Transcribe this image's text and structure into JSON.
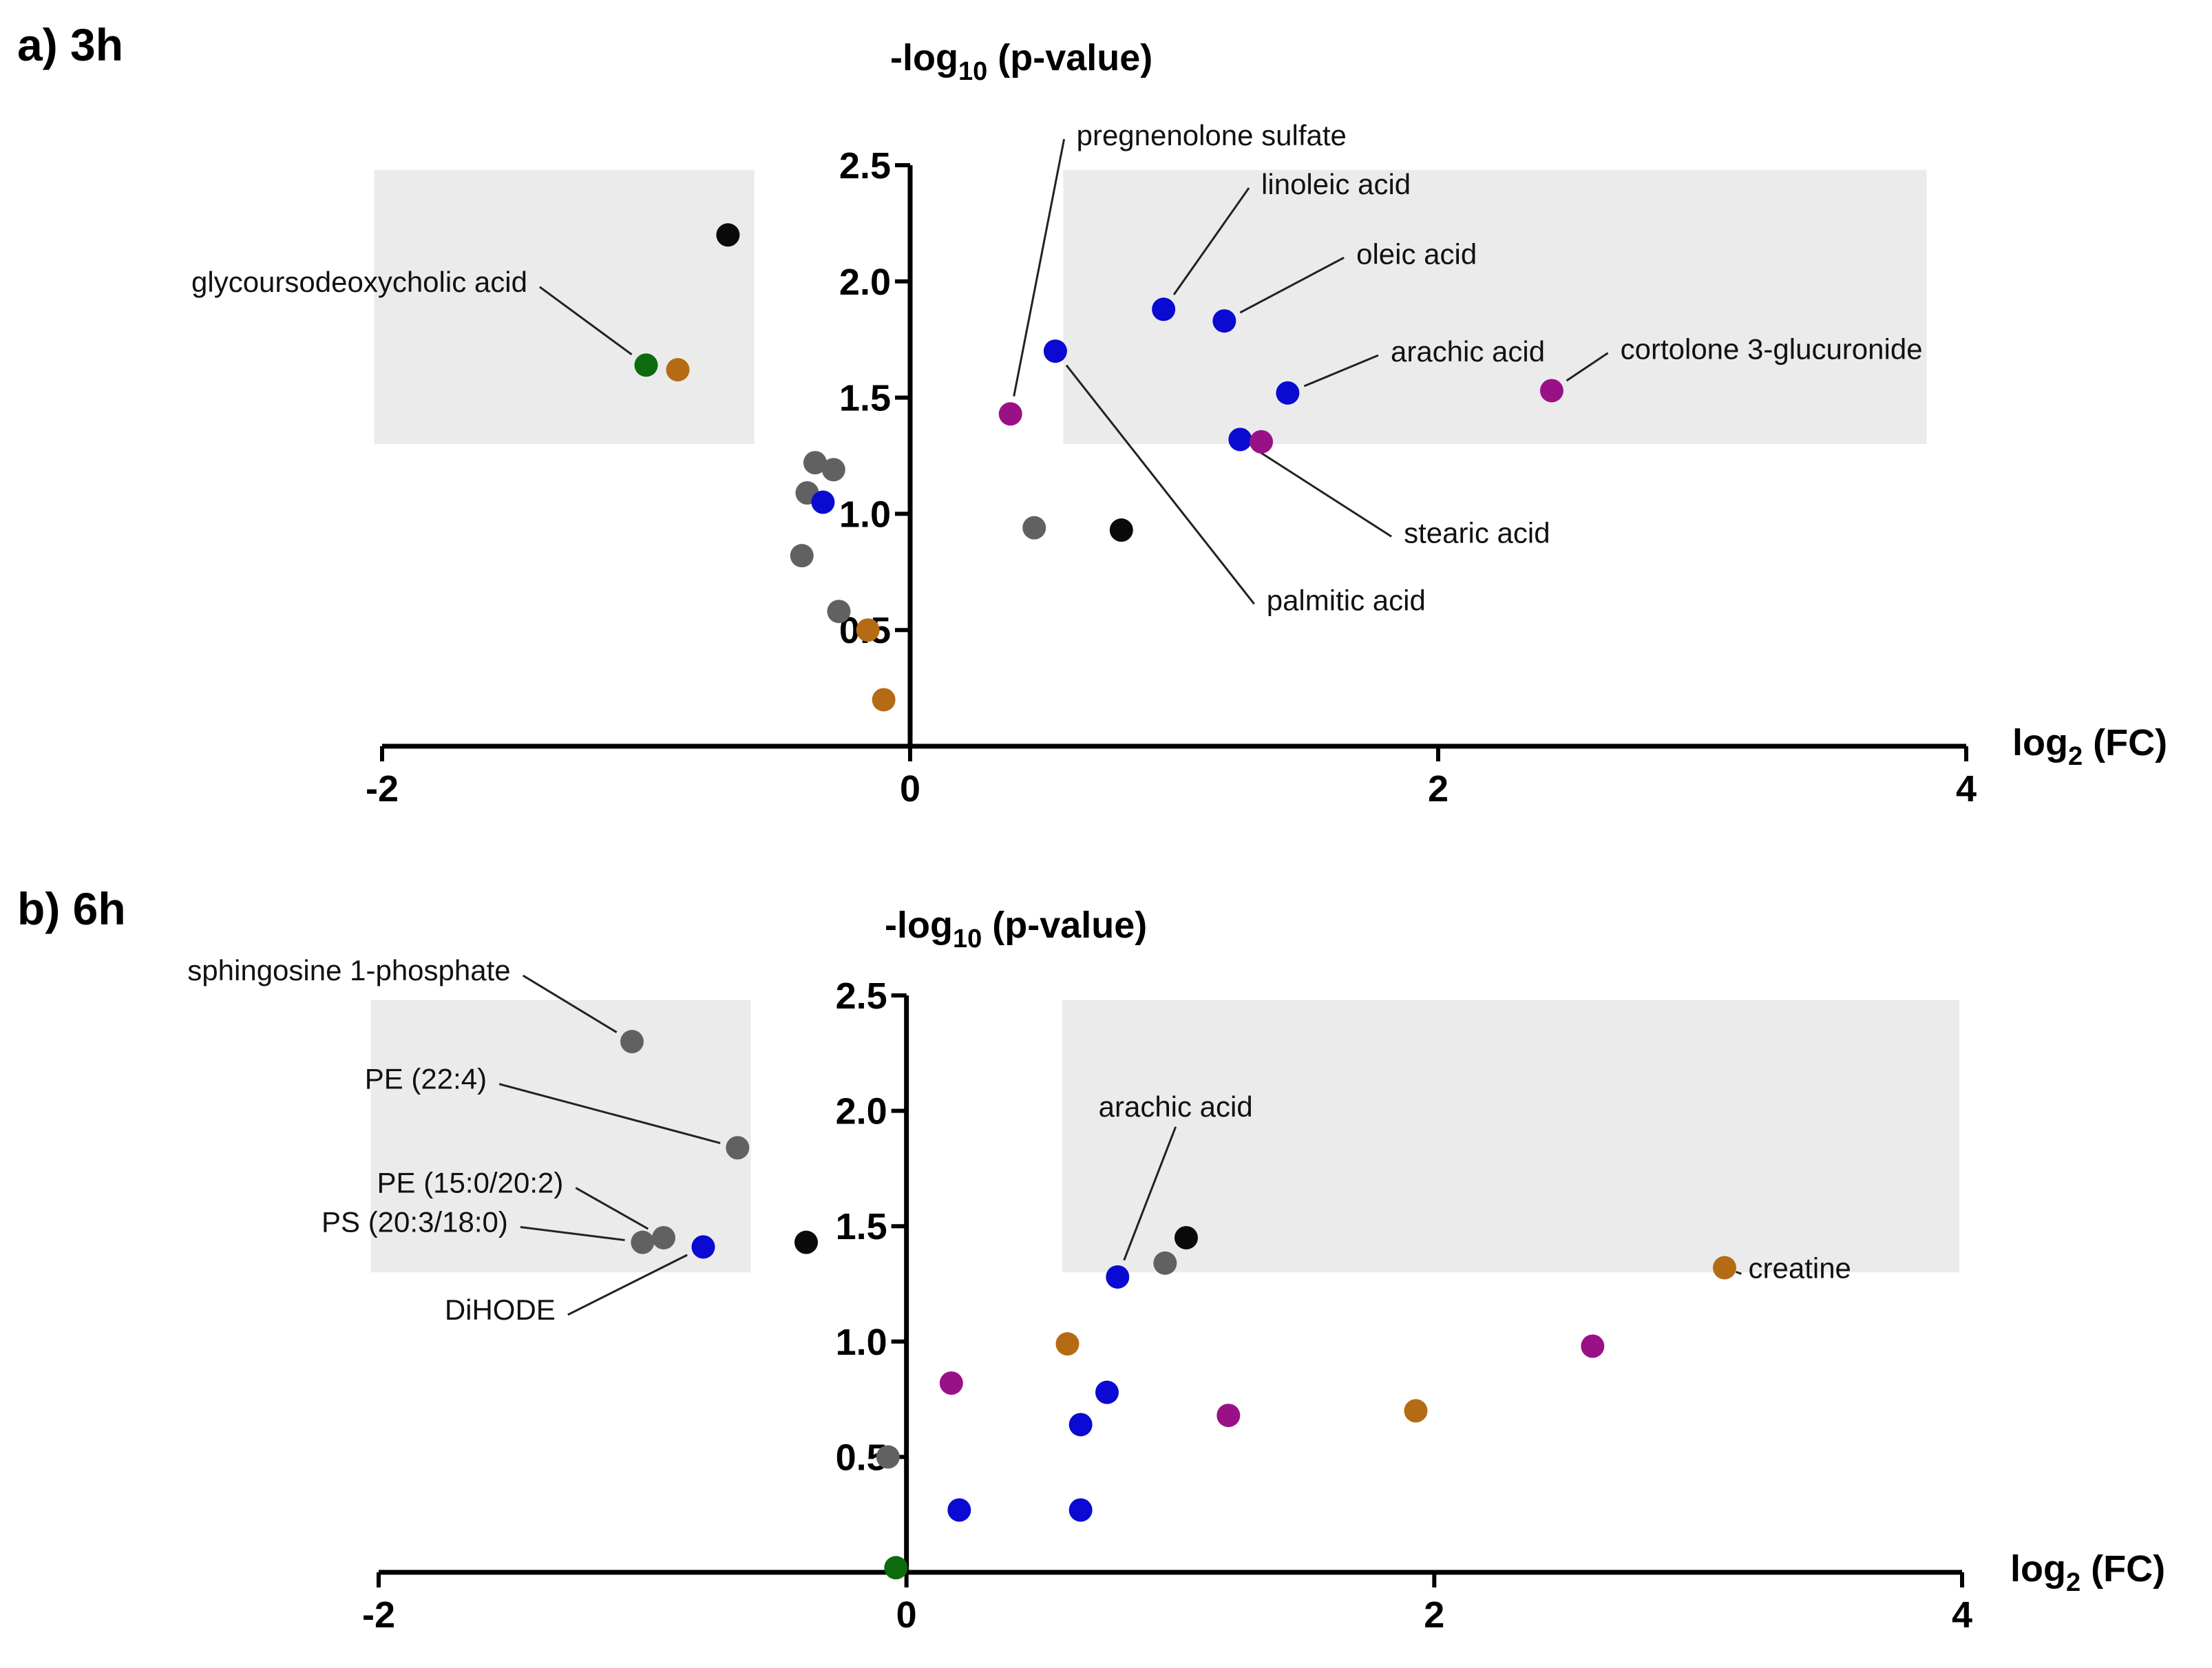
{
  "colors": {
    "black": "#0a0a0a",
    "grey": "#616161",
    "blue": "#0a0ad2",
    "green": "#0d6b0d",
    "orange": "#b56b14",
    "purple": "#9a1187",
    "region": "#ebebeb"
  },
  "chart_data": [
    {
      "type": "scatter",
      "panel_label": "a) 3h",
      "title": "",
      "ylabel": {
        "main": "-log",
        "sub": "10",
        "rest": " (p-value)"
      },
      "xlabel": {
        "main": "log",
        "sub": "2",
        "rest": " (FC)"
      },
      "xlim": [
        -2,
        4
      ],
      "ylim": [
        0,
        2.5
      ],
      "x_ticks": [
        "-2",
        "0",
        "2",
        "4"
      ],
      "x_tick_values": [
        -2,
        0,
        2,
        4
      ],
      "y_ticks": [
        "0.5",
        "1.0",
        "1.5",
        "2.0",
        "2.5"
      ],
      "y_tick_values": [
        0.5,
        1.0,
        1.5,
        2.0,
        2.5
      ],
      "highlight_regions": [
        {
          "x": [
            -2.03,
            -0.59
          ],
          "y": [
            1.3,
            2.48
          ]
        },
        {
          "x": [
            0.58,
            3.85
          ],
          "y": [
            1.3,
            2.48
          ]
        }
      ],
      "points": [
        {
          "x": -0.69,
          "y": 2.2,
          "color": "black"
        },
        {
          "x": -1.0,
          "y": 1.64,
          "color": "green"
        },
        {
          "x": -0.88,
          "y": 1.62,
          "color": "orange"
        },
        {
          "x": 0.55,
          "y": 1.7,
          "color": "blue"
        },
        {
          "x": 0.96,
          "y": 1.88,
          "color": "blue"
        },
        {
          "x": 1.19,
          "y": 1.83,
          "color": "blue"
        },
        {
          "x": 1.43,
          "y": 1.52,
          "color": "blue"
        },
        {
          "x": 2.43,
          "y": 1.53,
          "color": "purple"
        },
        {
          "x": 0.38,
          "y": 1.43,
          "color": "purple"
        },
        {
          "x": 1.25,
          "y": 1.32,
          "color": "blue"
        },
        {
          "x": 1.33,
          "y": 1.31,
          "color": "purple"
        },
        {
          "x": -0.36,
          "y": 1.22,
          "color": "grey"
        },
        {
          "x": -0.29,
          "y": 1.19,
          "color": "grey"
        },
        {
          "x": -0.39,
          "y": 1.09,
          "color": "grey"
        },
        {
          "x": -0.33,
          "y": 1.05,
          "color": "blue"
        },
        {
          "x": 0.47,
          "y": 0.94,
          "color": "grey"
        },
        {
          "x": 0.8,
          "y": 0.93,
          "color": "black"
        },
        {
          "x": -0.41,
          "y": 0.82,
          "color": "grey"
        },
        {
          "x": -0.27,
          "y": 0.58,
          "color": "grey"
        },
        {
          "x": -0.16,
          "y": 0.5,
          "color": "orange"
        },
        {
          "x": -0.1,
          "y": 0.2,
          "color": "orange"
        }
      ],
      "annotations": [
        {
          "text": "glycoursodeoxycholic acid",
          "x": -1.45,
          "y": 2.0,
          "anchor": "end",
          "point": 1
        },
        {
          "text": "pregnenolone sulfate",
          "x": 0.63,
          "y": 2.63,
          "anchor": "start",
          "point": 8
        },
        {
          "text": "linoleic acid",
          "x": 1.33,
          "y": 2.42,
          "anchor": "start",
          "point": 4
        },
        {
          "text": "oleic acid",
          "x": 1.69,
          "y": 2.12,
          "anchor": "start",
          "point": 5
        },
        {
          "text": "arachic acid",
          "x": 1.82,
          "y": 1.7,
          "anchor": "start",
          "point": 6
        },
        {
          "text": "cortolone 3-glucuronide",
          "x": 2.69,
          "y": 1.71,
          "anchor": "start",
          "point": 7
        },
        {
          "text": "stearic acid",
          "x": 1.87,
          "y": 0.92,
          "anchor": "start",
          "point": 9
        },
        {
          "text": "palmitic acid",
          "x": 1.35,
          "y": 0.63,
          "anchor": "start",
          "point": 3
        }
      ]
    },
    {
      "type": "scatter",
      "panel_label": "b) 6h",
      "title": "",
      "ylabel": {
        "main": "-log",
        "sub": "10",
        "rest": " (p-value)"
      },
      "xlabel": {
        "main": "log",
        "sub": "2",
        "rest": " (FC)"
      },
      "xlim": [
        -2,
        4
      ],
      "ylim": [
        0,
        2.5
      ],
      "x_ticks": [
        "-2",
        "0",
        "2",
        "4"
      ],
      "x_tick_values": [
        -2,
        0,
        2,
        4
      ],
      "y_ticks": [
        "0.5",
        "1.0",
        "1.5",
        "2.0",
        "2.5"
      ],
      "y_tick_values": [
        0.5,
        1.0,
        1.5,
        2.0,
        2.5
      ],
      "highlight_regions": [
        {
          "x": [
            -2.03,
            -0.59
          ],
          "y": [
            1.3,
            2.48
          ]
        },
        {
          "x": [
            0.59,
            3.99
          ],
          "y": [
            1.3,
            2.48
          ]
        }
      ],
      "points": [
        {
          "x": -1.04,
          "y": 2.3,
          "color": "grey"
        },
        {
          "x": -0.64,
          "y": 1.84,
          "color": "grey"
        },
        {
          "x": -0.92,
          "y": 1.45,
          "color": "grey"
        },
        {
          "x": -1.0,
          "y": 1.43,
          "color": "grey"
        },
        {
          "x": -0.77,
          "y": 1.41,
          "color": "blue"
        },
        {
          "x": -0.38,
          "y": 1.43,
          "color": "black"
        },
        {
          "x": 1.06,
          "y": 1.45,
          "color": "black"
        },
        {
          "x": 0.98,
          "y": 1.34,
          "color": "grey"
        },
        {
          "x": 0.8,
          "y": 1.28,
          "color": "blue"
        },
        {
          "x": 3.1,
          "y": 1.32,
          "color": "orange"
        },
        {
          "x": 0.61,
          "y": 0.99,
          "color": "orange"
        },
        {
          "x": 2.6,
          "y": 0.98,
          "color": "purple"
        },
        {
          "x": 0.17,
          "y": 0.82,
          "color": "purple"
        },
        {
          "x": 0.76,
          "y": 0.78,
          "color": "blue"
        },
        {
          "x": 1.22,
          "y": 0.68,
          "color": "purple"
        },
        {
          "x": 1.93,
          "y": 0.7,
          "color": "orange"
        },
        {
          "x": 0.66,
          "y": 0.64,
          "color": "blue"
        },
        {
          "x": -0.07,
          "y": 0.5,
          "color": "grey"
        },
        {
          "x": 0.2,
          "y": 0.27,
          "color": "blue"
        },
        {
          "x": 0.66,
          "y": 0.27,
          "color": "blue"
        },
        {
          "x": -0.04,
          "y": 0.02,
          "color": "green"
        }
      ],
      "annotations": [
        {
          "text": "sphingosine 1-phosphate",
          "x": -1.5,
          "y": 2.61,
          "anchor": "end",
          "point": 0
        },
        {
          "text": "PE (22:4)",
          "x": -1.59,
          "y": 2.14,
          "anchor": "end",
          "point": 1
        },
        {
          "text": "PE (15:0/20:2)",
          "x": -1.3,
          "y": 1.69,
          "anchor": "end",
          "point": 2
        },
        {
          "text": "PS (20:3/18:0)",
          "x": -1.51,
          "y": 1.52,
          "anchor": "end",
          "point": 3
        },
        {
          "text": "DiHODE",
          "x": -1.33,
          "y": 1.14,
          "anchor": "end",
          "point": 4
        },
        {
          "text": "arachic acid",
          "x": 1.02,
          "y": 2.02,
          "anchor": "middle",
          "point": 8
        },
        {
          "text": "creatine",
          "x": 3.19,
          "y": 1.32,
          "anchor": "start",
          "point": 9
        }
      ]
    }
  ]
}
